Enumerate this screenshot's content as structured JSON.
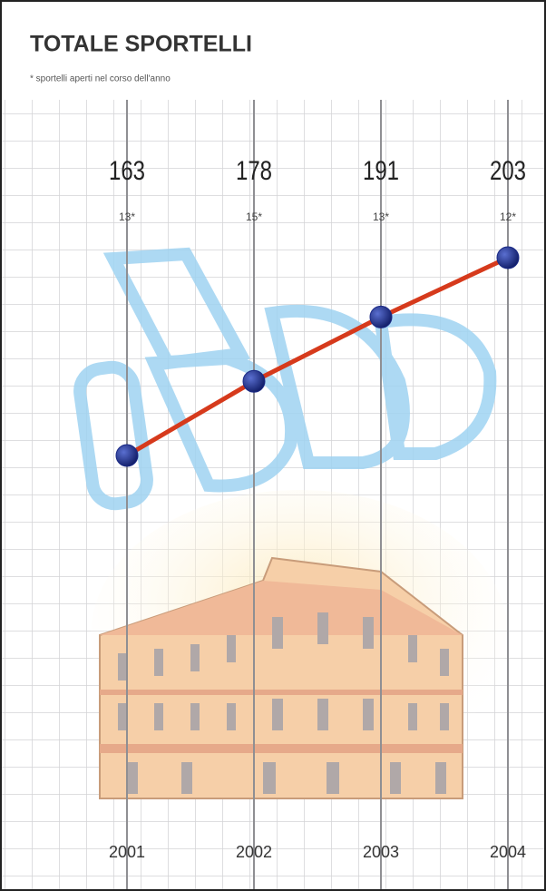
{
  "chart_data": {
    "type": "line",
    "title": "TOTALE SPORTELLI",
    "subtitle": "* sportelli aperti nel corso dell'anno",
    "categories": [
      "2001",
      "2002",
      "2003",
      "2004"
    ],
    "values": [
      163,
      178,
      191,
      203
    ],
    "color": "#d63a1c",
    "marker_color": "#1b2a86",
    "opened": {
      "values": [
        13,
        15,
        13,
        12
      ],
      "value_labels": [
        "13*",
        "15*",
        "13*",
        "12*"
      ]
    }
  }
}
